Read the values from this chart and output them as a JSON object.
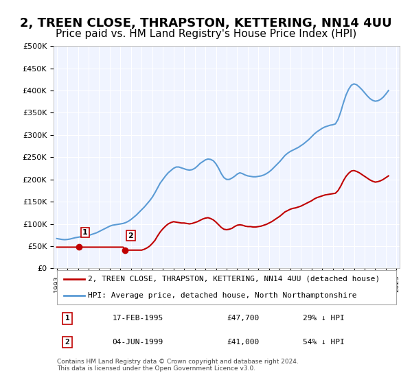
{
  "title": "2, TREEN CLOSE, THRAPSTON, KETTERING, NN14 4UU",
  "subtitle": "Price paid vs. HM Land Registry's House Price Index (HPI)",
  "title_fontsize": 13,
  "subtitle_fontsize": 11,
  "ylabel_ticks": [
    "£0",
    "£50K",
    "£100K",
    "£150K",
    "£200K",
    "£250K",
    "£300K",
    "£350K",
    "£400K",
    "£450K",
    "£500K"
  ],
  "ytick_values": [
    0,
    50000,
    100000,
    150000,
    200000,
    250000,
    300000,
    350000,
    400000,
    450000,
    500000
  ],
  "ylim": [
    0,
    500000
  ],
  "hpi_color": "#5b9bd5",
  "price_color": "#c00000",
  "sale1_date": 1995.12,
  "sale1_price": 47700,
  "sale2_date": 1999.42,
  "sale2_price": 41000,
  "background_plot": "#f0f4ff",
  "grid_color": "#ffffff",
  "legend_label1": "2, TREEN CLOSE, THRAPSTON, KETTERING, NN14 4UU (detached house)",
  "legend_label2": "HPI: Average price, detached house, North Northamptonshire",
  "annotation1_label": "1",
  "annotation1_date": "17-FEB-1995",
  "annotation1_price": "£47,700",
  "annotation1_hpi": "29% ↓ HPI",
  "annotation2_label": "2",
  "annotation2_date": "04-JUN-1999",
  "annotation2_price": "£41,000",
  "annotation2_hpi": "54% ↓ HPI",
  "footer": "Contains HM Land Registry data © Crown copyright and database right 2024.\nThis data is licensed under the Open Government Licence v3.0.",
  "hpi_years": [
    1993.0,
    1993.25,
    1993.5,
    1993.75,
    1994.0,
    1994.25,
    1994.5,
    1994.75,
    1995.0,
    1995.25,
    1995.5,
    1995.75,
    1996.0,
    1996.25,
    1996.5,
    1996.75,
    1997.0,
    1997.25,
    1997.5,
    1997.75,
    1998.0,
    1998.25,
    1998.5,
    1998.75,
    1999.0,
    1999.25,
    1999.5,
    1999.75,
    2000.0,
    2000.25,
    2000.5,
    2000.75,
    2001.0,
    2001.25,
    2001.5,
    2001.75,
    2002.0,
    2002.25,
    2002.5,
    2002.75,
    2003.0,
    2003.25,
    2003.5,
    2003.75,
    2004.0,
    2004.25,
    2004.5,
    2004.75,
    2005.0,
    2005.25,
    2005.5,
    2005.75,
    2006.0,
    2006.25,
    2006.5,
    2006.75,
    2007.0,
    2007.25,
    2007.5,
    2007.75,
    2008.0,
    2008.25,
    2008.5,
    2008.75,
    2009.0,
    2009.25,
    2009.5,
    2009.75,
    2010.0,
    2010.25,
    2010.5,
    2010.75,
    2011.0,
    2011.25,
    2011.5,
    2011.75,
    2012.0,
    2012.25,
    2012.5,
    2012.75,
    2013.0,
    2013.25,
    2013.5,
    2013.75,
    2014.0,
    2014.25,
    2014.5,
    2014.75,
    2015.0,
    2015.25,
    2015.5,
    2015.75,
    2016.0,
    2016.25,
    2016.5,
    2016.75,
    2017.0,
    2017.25,
    2017.5,
    2017.75,
    2018.0,
    2018.25,
    2018.5,
    2018.75,
    2019.0,
    2019.25,
    2019.5,
    2019.75,
    2020.0,
    2020.25,
    2020.5,
    2020.75,
    2021.0,
    2021.25,
    2021.5,
    2021.75,
    2022.0,
    2022.25,
    2022.5,
    2022.75,
    2023.0,
    2023.25,
    2023.5,
    2023.75,
    2024.0,
    2024.25
  ],
  "hpi_values": [
    67000,
    66000,
    65000,
    64500,
    65000,
    66000,
    67500,
    69000,
    70000,
    71000,
    72000,
    73000,
    74000,
    76000,
    78000,
    80000,
    83000,
    86000,
    89000,
    92000,
    95000,
    97000,
    98000,
    99000,
    100000,
    101000,
    103000,
    106000,
    110000,
    115000,
    120000,
    126000,
    132000,
    138000,
    145000,
    152000,
    160000,
    170000,
    181000,
    192000,
    200000,
    208000,
    215000,
    220000,
    225000,
    228000,
    228000,
    226000,
    224000,
    222000,
    221000,
    222000,
    225000,
    230000,
    236000,
    240000,
    244000,
    246000,
    245000,
    242000,
    235000,
    225000,
    213000,
    204000,
    200000,
    200000,
    203000,
    207000,
    212000,
    215000,
    213000,
    210000,
    208000,
    207000,
    206000,
    206000,
    207000,
    208000,
    210000,
    213000,
    217000,
    222000,
    228000,
    234000,
    240000,
    247000,
    254000,
    259000,
    263000,
    266000,
    269000,
    272000,
    276000,
    280000,
    285000,
    290000,
    296000,
    302000,
    307000,
    311000,
    315000,
    318000,
    320000,
    322000,
    323000,
    325000,
    335000,
    352000,
    372000,
    390000,
    403000,
    412000,
    415000,
    413000,
    408000,
    402000,
    395000,
    388000,
    382000,
    378000,
    376000,
    377000,
    380000,
    385000,
    392000,
    400000
  ],
  "price_years": [
    1993.0,
    1993.25,
    1993.5,
    1993.75,
    1994.0,
    1994.25,
    1994.5,
    1994.75,
    1995.0,
    1995.25,
    1995.5,
    1995.75,
    1996.0,
    1996.25,
    1996.5,
    1996.75,
    1997.0,
    1997.25,
    1997.5,
    1997.75,
    1998.0,
    1998.25,
    1998.5,
    1998.75,
    1999.0,
    1999.25,
    1999.5,
    1999.75,
    2000.0,
    2000.25,
    2000.5,
    2000.75,
    2001.0,
    2001.25,
    2001.5,
    2001.75,
    2002.0,
    2002.25,
    2002.5,
    2002.75,
    2003.0,
    2003.25,
    2003.5,
    2003.75,
    2004.0,
    2004.25,
    2004.5,
    2004.75,
    2005.0,
    2005.25,
    2005.5,
    2005.75,
    2006.0,
    2006.25,
    2006.5,
    2006.75,
    2007.0,
    2007.25,
    2007.5,
    2007.75,
    2008.0,
    2008.25,
    2008.5,
    2008.75,
    2009.0,
    2009.25,
    2009.5,
    2009.75,
    2010.0,
    2010.25,
    2010.5,
    2010.75,
    2011.0,
    2011.25,
    2011.5,
    2011.75,
    2012.0,
    2012.25,
    2012.5,
    2012.75,
    2013.0,
    2013.25,
    2013.5,
    2013.75,
    2014.0,
    2014.25,
    2014.5,
    2014.75,
    2015.0,
    2015.25,
    2015.5,
    2015.75,
    2016.0,
    2016.25,
    2016.5,
    2016.75,
    2017.0,
    2017.25,
    2017.5,
    2017.75,
    2018.0,
    2018.25,
    2018.5,
    2018.75,
    2019.0,
    2019.25,
    2019.5,
    2019.75,
    2020.0,
    2020.25,
    2020.5,
    2020.75,
    2021.0,
    2021.25,
    2021.5,
    2021.75,
    2022.0,
    2022.25,
    2022.5,
    2022.75,
    2023.0,
    2023.25,
    2023.5,
    2023.75,
    2024.0,
    2024.25
  ],
  "price_interp": [
    47700,
    47700,
    47700,
    47700,
    47700,
    47700,
    47700,
    47700,
    47700,
    47700,
    47700,
    47700,
    47700,
    47700,
    47700,
    47700,
    47700,
    47700,
    47700,
    47700,
    47700,
    47700,
    47700,
    47700,
    47700,
    47700,
    41000,
    41000,
    41000,
    41000,
    41000,
    41000,
    41000,
    43000,
    46000,
    50000,
    56000,
    63000,
    73000,
    82000,
    89000,
    95000,
    100000,
    103000,
    105000,
    104000,
    103000,
    102000,
    102000,
    101000,
    100000,
    101000,
    103000,
    105000,
    108000,
    111000,
    113000,
    114000,
    112000,
    109000,
    104000,
    98000,
    92000,
    88000,
    87000,
    88000,
    90000,
    94000,
    97000,
    98000,
    97000,
    95000,
    94000,
    94000,
    93000,
    93000,
    94000,
    95000,
    97000,
    99000,
    102000,
    105000,
    109000,
    113000,
    117000,
    122000,
    127000,
    130000,
    133000,
    135000,
    136000,
    138000,
    140000,
    143000,
    146000,
    149000,
    152000,
    156000,
    159000,
    161000,
    163000,
    165000,
    166000,
    167000,
    168000,
    169000,
    175000,
    185000,
    197000,
    207000,
    214000,
    219000,
    220000,
    218000,
    215000,
    211000,
    207000,
    203000,
    199000,
    196000,
    194000,
    195000,
    197000,
    200000,
    204000,
    208000
  ]
}
